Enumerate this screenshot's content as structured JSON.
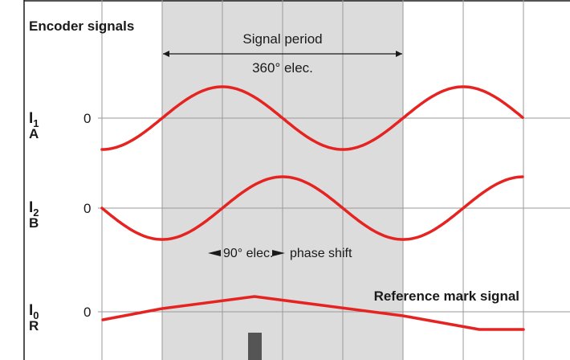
{
  "title": "Encoder signals",
  "signal_period": {
    "label": "Signal period",
    "value": "360° elec."
  },
  "phase_shift": {
    "value": "90° elec.",
    "label": "phase shift"
  },
  "reference_label": "Reference mark signal",
  "channels": [
    {
      "main": "I",
      "sub": "1",
      "letter": "A",
      "zero": "0"
    },
    {
      "main": "I",
      "sub": "2",
      "letter": "B",
      "zero": "0"
    },
    {
      "main": "I",
      "sub": "0",
      "letter": "R",
      "zero": "0"
    }
  ],
  "colors": {
    "signal": "#e52421",
    "shaded": "#dcdcdc",
    "grid": "#9a9a9a",
    "marker": "#555555"
  }
}
